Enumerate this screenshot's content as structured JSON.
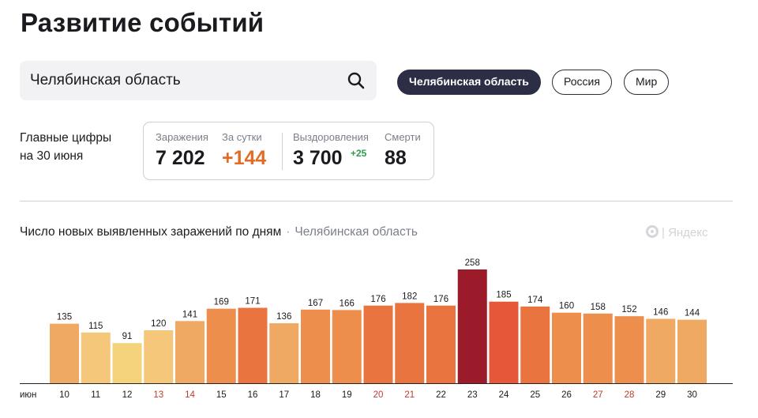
{
  "header": {
    "title": "Развитие событий"
  },
  "search": {
    "value": "Челябинская область",
    "icon": "search-icon"
  },
  "region_tabs": [
    {
      "label": "Челябинская область",
      "active": true
    },
    {
      "label": "Россия",
      "active": false
    },
    {
      "label": "Мир",
      "active": false
    }
  ],
  "summary": {
    "label_line1": "Главные цифры",
    "label_line2": "на 30 июня",
    "infections_label": "Заражения",
    "infections_value": "7 202",
    "daily_label": "За сутки",
    "daily_value": "+144",
    "recoveries_label": "Выздоровления",
    "recoveries_value": "3 700",
    "recoveries_delta": "+25",
    "deaths_label": "Смерти",
    "deaths_value": "88"
  },
  "chart_header": {
    "title": "Число новых выявленных заражений по дням",
    "separator": "·",
    "region": "Челябинская область",
    "brand": "| Яндекс"
  },
  "chart_data": {
    "type": "bar",
    "title": "Число новых выявленных заражений по дням",
    "x_month_label": "июн",
    "categories": [
      "10",
      "11",
      "12",
      "13",
      "14",
      "15",
      "16",
      "17",
      "18",
      "19",
      "20",
      "21",
      "22",
      "23",
      "24",
      "25",
      "26",
      "27",
      "28",
      "29",
      "30"
    ],
    "values": [
      135,
      115,
      91,
      120,
      141,
      169,
      171,
      136,
      167,
      166,
      176,
      182,
      176,
      258,
      185,
      174,
      160,
      158,
      152,
      146,
      144
    ],
    "weekend_days": [
      "13",
      "14",
      "20",
      "21",
      "27",
      "28"
    ],
    "ylim": [
      0,
      258
    ],
    "grid": false,
    "colors": {
      "bar_by_level": [
        "#f5d37a",
        "#f4c77a",
        "#f0a962",
        "#ee8e4d",
        "#e9743f"
      ],
      "max_bar": "#9b1b2a",
      "highlight_bar": "#e6573a",
      "weekend_label": "#c0392b",
      "label": "#1b1b1f"
    }
  }
}
